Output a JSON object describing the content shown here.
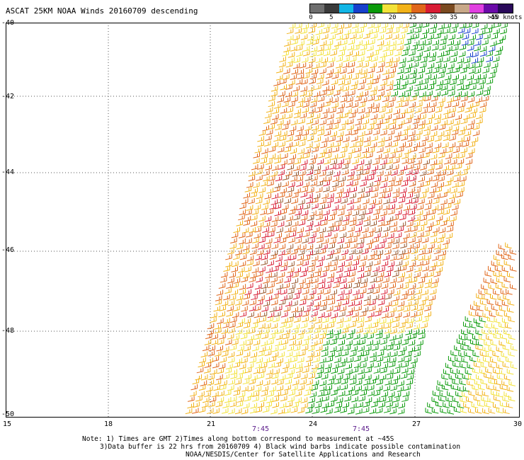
{
  "header": {
    "title": "ASCAT 25KM NOAA Winds 20160709 descending"
  },
  "legend": {
    "unit_label": ">50 knots",
    "ticks": [
      "0",
      "5",
      "10",
      "15",
      "20",
      "25",
      "30",
      "35",
      "40",
      "45"
    ],
    "colors": [
      "#6e6e6e",
      "#3a3a3a",
      "#12b6e6",
      "#1740cc",
      "#0a9a0a",
      "#f2e238",
      "#f2b218",
      "#e0661a",
      "#d81c34",
      "#7a4a20",
      "#c8a888",
      "#e040e0",
      "#6a0aa8",
      "#2a0a5a"
    ]
  },
  "map": {
    "lat_labels": [
      "-40",
      "-42",
      "-44",
      "-46",
      "-48",
      "-50"
    ],
    "lon_labels": [
      "15",
      "18",
      "21",
      "24",
      "27",
      "30"
    ],
    "time_labels": [
      "7:45",
      "7:45"
    ]
  },
  "notes": {
    "line1": "Note: 1) Times are GMT 2)Times along bottom correspond to measurement at ~45S",
    "line2": "3)Data buffer is 22 hrs from 20160709 4) Black wind barbs indicate possible contamination",
    "line3": "NOAA/NESDIS/Center for Satellite Applications and Research"
  }
}
